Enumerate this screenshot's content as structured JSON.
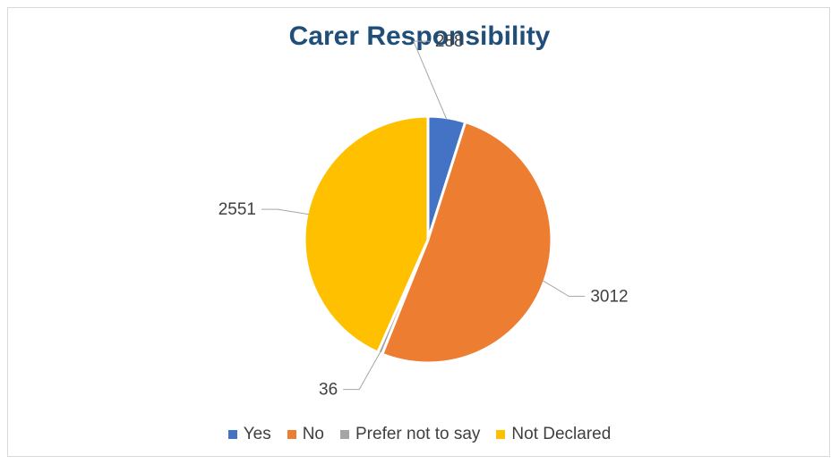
{
  "chart_data": {
    "type": "pie",
    "title": "Carer Responsibility",
    "categories": [
      "Yes",
      "No",
      "Prefer not to say",
      "Not Declared"
    ],
    "values": [
      288,
      3012,
      36,
      2551
    ],
    "colors": [
      "#4472c4",
      "#ed7d31",
      "#a5a5a5",
      "#ffc000"
    ],
    "data_labels": [
      "288",
      "3012",
      "36",
      "2551"
    ],
    "start_angle_deg": 0,
    "direction": "clockwise",
    "legend_position": "bottom"
  }
}
